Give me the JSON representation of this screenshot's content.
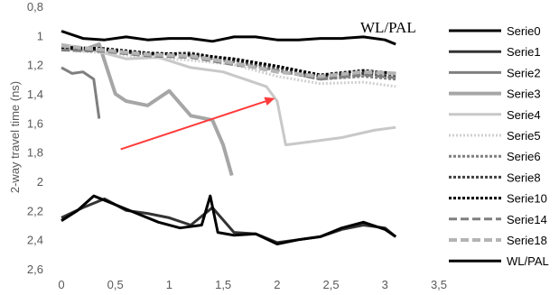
{
  "chart_data": {
    "type": "line",
    "title": "",
    "xlabel": "",
    "ylabel": "2-way travel time (ns)",
    "xlim": [
      0,
      3.5
    ],
    "ylim": [
      0.8,
      2.6
    ],
    "y_inverted": true,
    "grid": false,
    "legend_position": "right",
    "x_ticks": [
      "0",
      "0,5",
      "1",
      "1,5",
      "2",
      "2,5",
      "3",
      "3,5"
    ],
    "x_tick_values": [
      0,
      0.5,
      1,
      1.5,
      2,
      2.5,
      3,
      3.5
    ],
    "y_ticks": [
      "0,8",
      "1",
      "1,2",
      "1,4",
      "1,6",
      "1,8",
      "2",
      "2,2",
      "2,4",
      "2,6"
    ],
    "y_tick_values": [
      0.8,
      1.0,
      1.2,
      1.4,
      1.6,
      1.8,
      2.0,
      2.2,
      2.4,
      2.6
    ],
    "annotation": "WL/PAL",
    "arrow": {
      "from": [
        0.55,
        1.78
      ],
      "to": [
        1.98,
        1.43
      ],
      "color": "#ff3b3b"
    },
    "series": [
      {
        "name": "Serie0",
        "color": "#000000",
        "width": 3,
        "dash": "",
        "x": [
          0,
          0.2,
          0.4,
          0.6,
          0.8,
          1.0,
          1.2,
          1.4,
          1.6,
          1.8,
          2.0,
          2.2,
          2.4,
          2.6,
          2.8,
          3.0,
          3.1
        ],
        "y": [
          0.97,
          1.02,
          1.03,
          1.01,
          1.03,
          1.02,
          1.02,
          1.04,
          1.01,
          1.01,
          1.03,
          1.03,
          1.02,
          1.02,
          1.01,
          1.03,
          1.06
        ]
      },
      {
        "name": "Serie1",
        "color": "#333333",
        "width": 3,
        "dash": "",
        "x": [
          0,
          0.2,
          0.4,
          0.6,
          0.8,
          1.0,
          1.2,
          1.4,
          1.6,
          1.8,
          2.0,
          2.2,
          2.4,
          2.6,
          2.8,
          3.0,
          3.1
        ],
        "y": [
          2.25,
          2.18,
          2.12,
          2.2,
          2.22,
          2.25,
          2.3,
          2.18,
          2.35,
          2.36,
          2.42,
          2.4,
          2.38,
          2.33,
          2.3,
          2.32,
          2.38
        ]
      },
      {
        "name": "Serie2",
        "color": "#7f7f7f",
        "width": 3,
        "dash": "",
        "x": [
          0,
          0.1,
          0.2,
          0.3,
          0.35
        ],
        "y": [
          1.22,
          1.26,
          1.25,
          1.3,
          1.57
        ]
      },
      {
        "name": "Serie3",
        "color": "#a6a6a6",
        "width": 4,
        "dash": "",
        "x": [
          0,
          0.2,
          0.35,
          0.5,
          0.6,
          0.8,
          1.0,
          1.2,
          1.4,
          1.5,
          1.58
        ],
        "y": [
          1.08,
          1.1,
          1.06,
          1.4,
          1.45,
          1.48,
          1.38,
          1.55,
          1.58,
          1.75,
          1.96
        ]
      },
      {
        "name": "Serie4",
        "color": "#c8c8c8",
        "width": 3,
        "dash": "",
        "x": [
          0,
          0.3,
          0.6,
          0.9,
          1.2,
          1.5,
          1.7,
          1.9,
          2.0,
          2.08,
          2.3,
          2.6,
          2.9,
          3.1
        ],
        "y": [
          1.06,
          1.1,
          1.16,
          1.15,
          1.22,
          1.25,
          1.3,
          1.35,
          1.45,
          1.75,
          1.73,
          1.7,
          1.65,
          1.63
        ]
      },
      {
        "name": "Serie5",
        "color": "#d0d0d0",
        "width": 3,
        "dash": "2,2",
        "x": [
          0,
          0.4,
          0.8,
          1.2,
          1.6,
          2.0,
          2.4,
          2.8,
          3.1
        ],
        "y": [
          1.1,
          1.12,
          1.15,
          1.17,
          1.2,
          1.28,
          1.33,
          1.32,
          1.35
        ]
      },
      {
        "name": "Serie6",
        "color": "#808080",
        "width": 3,
        "dash": "3,2",
        "x": [
          0,
          0.4,
          0.8,
          1.2,
          1.6,
          2.0,
          2.4,
          2.8,
          3.1
        ],
        "y": [
          1.08,
          1.1,
          1.12,
          1.14,
          1.18,
          1.24,
          1.3,
          1.28,
          1.3
        ]
      },
      {
        "name": "Serie8",
        "color": "#404040",
        "width": 3,
        "dash": "3,2",
        "x": [
          0,
          0.4,
          0.8,
          1.2,
          1.6,
          2.0,
          2.4,
          2.8,
          3.1
        ],
        "y": [
          1.09,
          1.1,
          1.13,
          1.12,
          1.17,
          1.22,
          1.28,
          1.26,
          1.28
        ]
      },
      {
        "name": "Serie10",
        "color": "#000000",
        "width": 3,
        "dash": "3,2",
        "x": [
          0,
          0.4,
          0.8,
          1.2,
          1.6,
          2.0,
          2.4,
          2.8,
          3.1
        ],
        "y": [
          1.08,
          1.09,
          1.12,
          1.13,
          1.16,
          1.21,
          1.27,
          1.24,
          1.26
        ]
      },
      {
        "name": "Serie14",
        "color": "#7f7f7f",
        "width": 3,
        "dash": "9,4",
        "x": [
          0,
          0.4,
          0.8,
          1.2,
          1.6,
          2.0,
          2.4,
          2.8,
          3.1
        ],
        "y": [
          1.1,
          1.11,
          1.14,
          1.15,
          1.2,
          1.24,
          1.3,
          1.27,
          1.29
        ]
      },
      {
        "name": "Serie18",
        "color": "#b4b4b4",
        "width": 4,
        "dash": "9,4",
        "x": [
          0,
          0.4,
          0.8,
          1.2,
          1.6,
          2.0,
          2.4,
          2.8,
          3.1
        ],
        "y": [
          1.07,
          1.1,
          1.13,
          1.14,
          1.19,
          1.25,
          1.28,
          1.25,
          1.26
        ]
      },
      {
        "name": "WL/PAL",
        "color": "#000000",
        "width": 3,
        "dash": "",
        "x": [
          0,
          0.15,
          0.3,
          0.5,
          0.7,
          0.9,
          1.1,
          1.3,
          1.38,
          1.45,
          1.6,
          1.8,
          2.0,
          2.2,
          2.4,
          2.6,
          2.8,
          3.0,
          3.1
        ],
        "y": [
          2.27,
          2.2,
          2.1,
          2.16,
          2.22,
          2.28,
          2.32,
          2.3,
          2.1,
          2.35,
          2.37,
          2.36,
          2.43,
          2.4,
          2.38,
          2.32,
          2.28,
          2.33,
          2.38
        ]
      }
    ]
  }
}
